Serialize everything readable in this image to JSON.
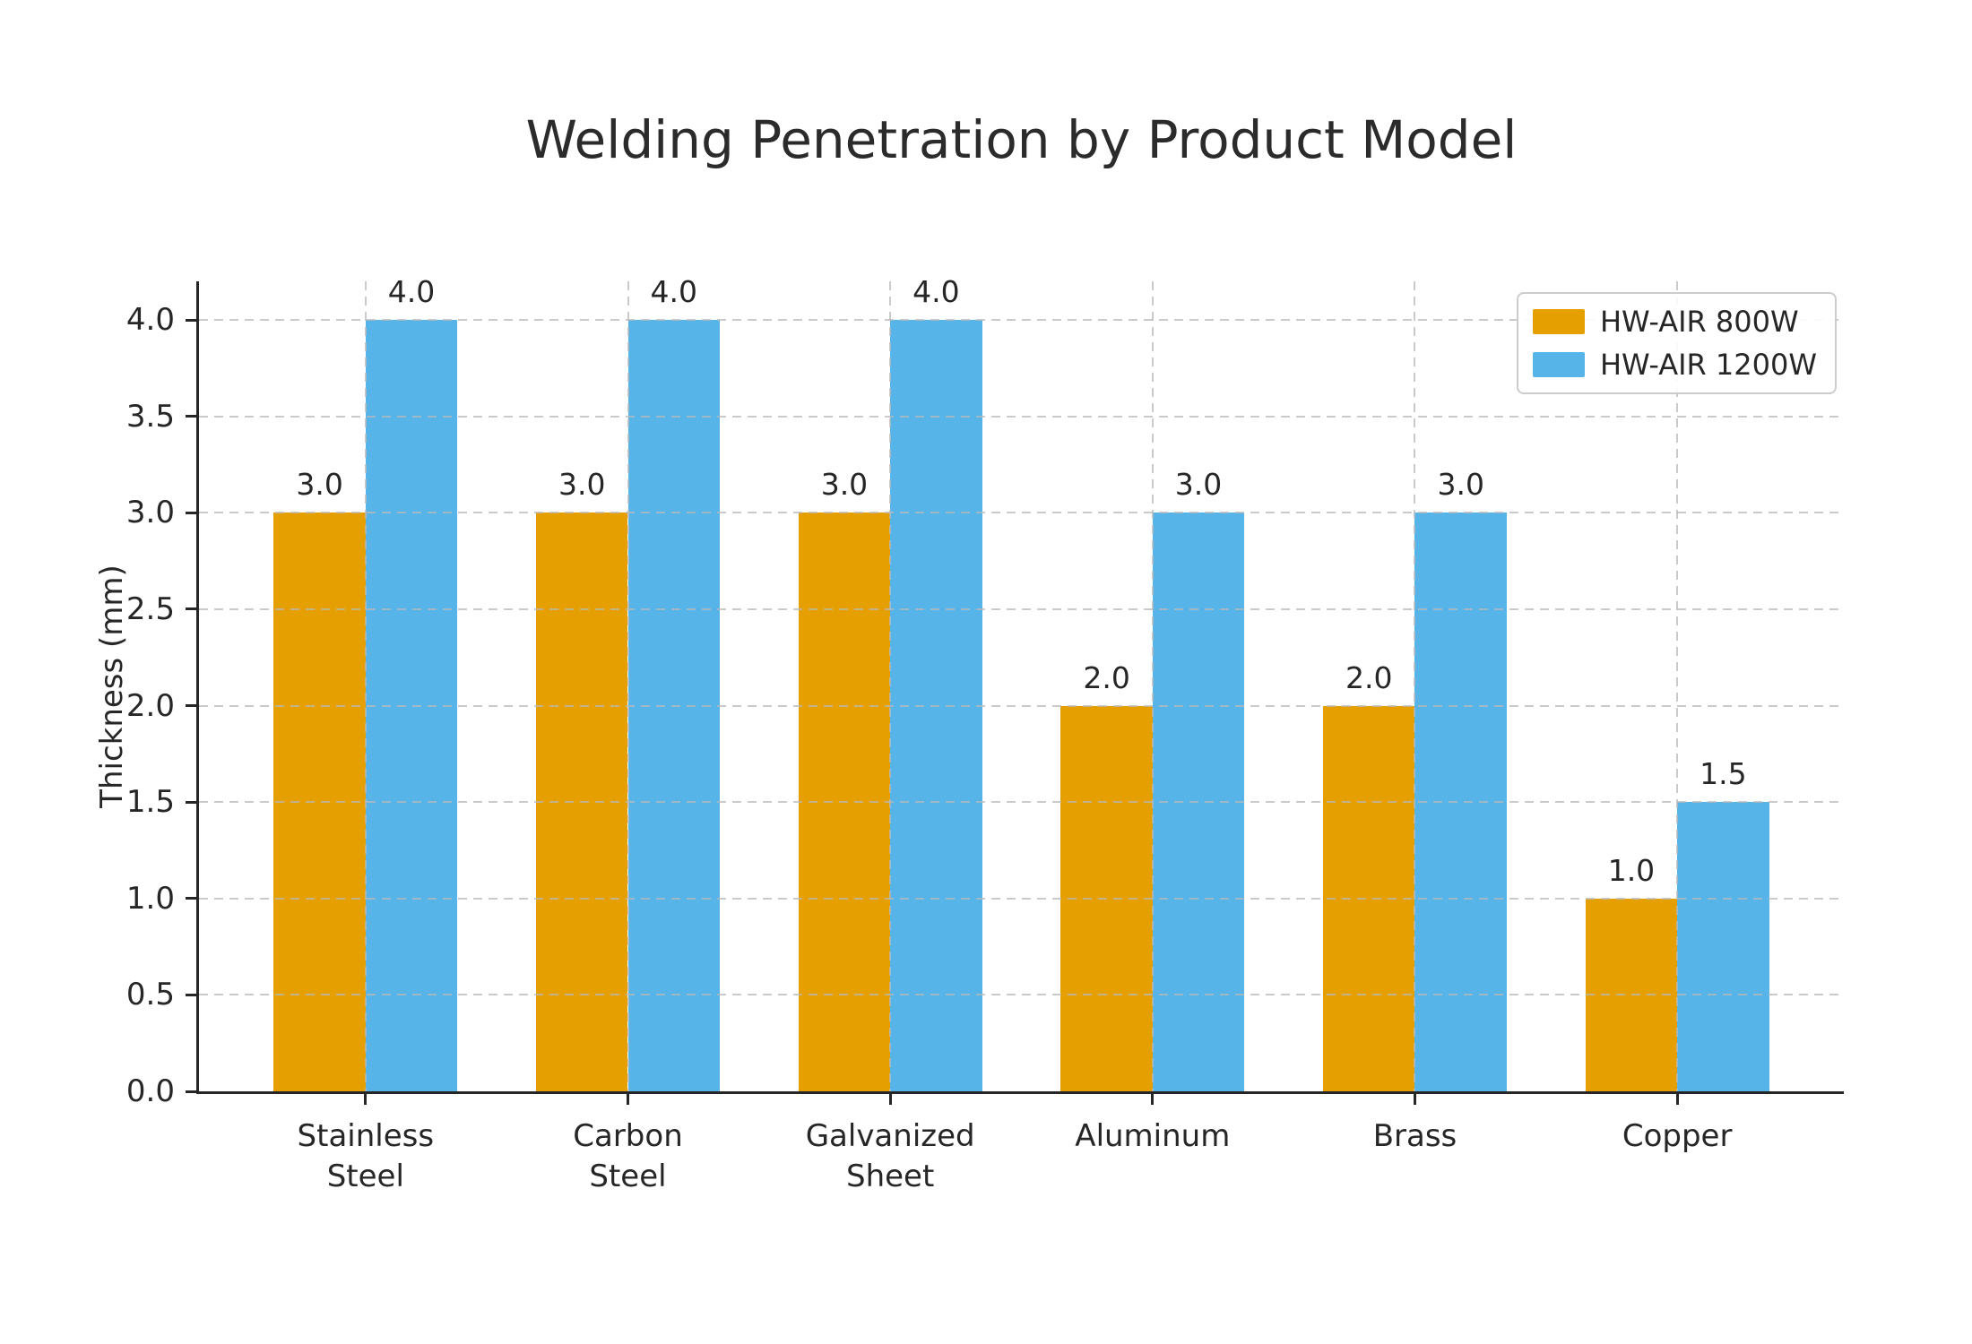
{
  "chart_data": {
    "type": "bar",
    "title": "Welding Penetration by Product Model",
    "xlabel": "",
    "ylabel": "Thickness (mm)",
    "categories": [
      "Stainless Steel",
      "Carbon Steel",
      "Galvanized Sheet",
      "Aluminum",
      "Brass",
      "Copper"
    ],
    "categories_display": [
      "Stainless\nSteel",
      "Carbon\nSteel",
      "Galvanized\nSheet",
      "Aluminum",
      "Brass",
      "Copper"
    ],
    "series": [
      {
        "name": "HW-AIR 800W",
        "color": "#E69F00",
        "values": [
          3.0,
          3.0,
          3.0,
          2.0,
          2.0,
          1.0
        ]
      },
      {
        "name": "HW-AIR 1200W",
        "color": "#56B4E9",
        "values": [
          4.0,
          4.0,
          4.0,
          3.0,
          3.0,
          1.5
        ]
      }
    ],
    "ylim": [
      0,
      4.2
    ],
    "xlim": [
      -0.635,
      5.635
    ],
    "yticks": [
      0.0,
      0.5,
      1.0,
      1.5,
      2.0,
      2.5,
      3.0,
      3.5,
      4.0
    ],
    "bar_width": 0.35,
    "value_label_decimals": 1,
    "grid": true,
    "grid_style": "dashed",
    "legend_position": "upper right"
  }
}
